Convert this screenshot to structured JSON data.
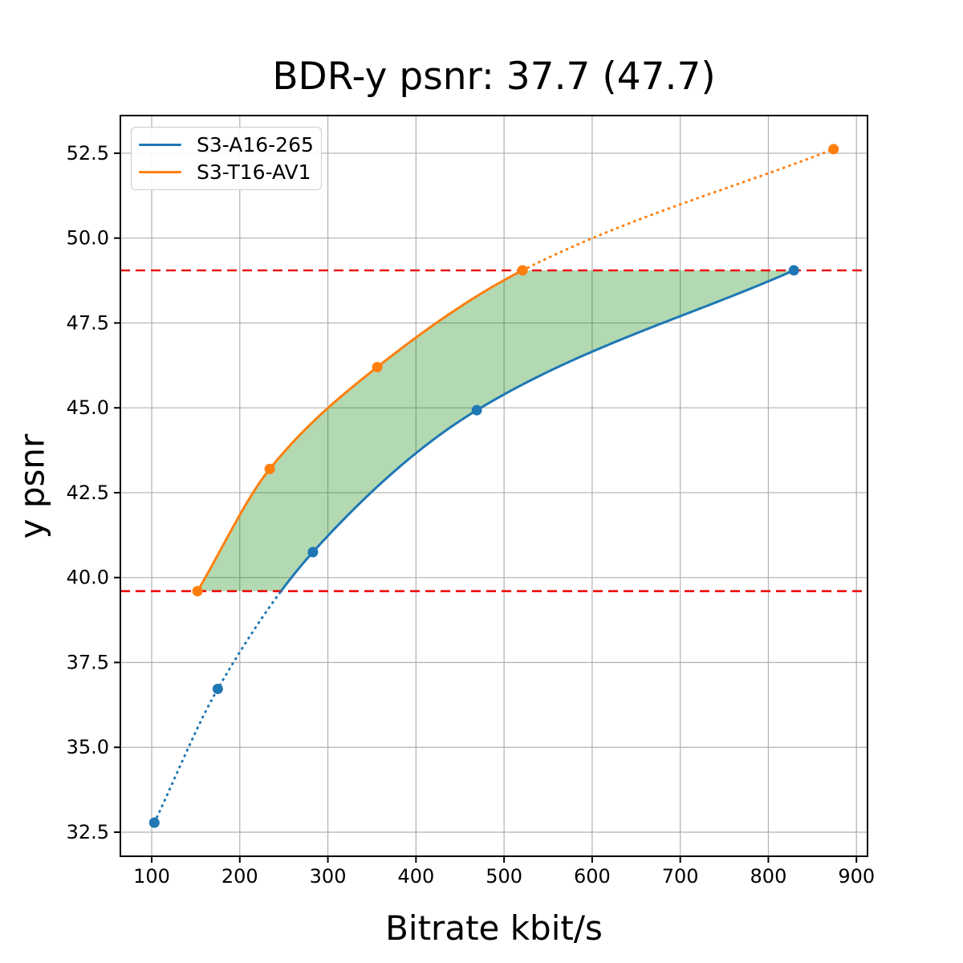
{
  "chart_data": {
    "type": "line",
    "title": "BDR-y psnr: 37.7 (47.7)",
    "xlabel": "Bitrate kbit/s",
    "ylabel": "y psnr",
    "xlim": [
      64.45,
      912.55
    ],
    "ylim": [
      31.79,
      53.61
    ],
    "xtick_values": [
      100,
      200,
      300,
      400,
      500,
      600,
      700,
      800,
      900
    ],
    "xtick_labels": [
      "100",
      "200",
      "300",
      "400",
      "500",
      "600",
      "700",
      "800",
      "900"
    ],
    "ytick_values": [
      32.5,
      35.0,
      37.5,
      40.0,
      42.5,
      45.0,
      47.5,
      50.0,
      52.5
    ],
    "ytick_labels": [
      "32.5",
      "35.0",
      "37.5",
      "40.0",
      "42.5",
      "45.0",
      "47.5",
      "50.0",
      "52.5"
    ],
    "grid": true,
    "grid_color": "#b0b0b0",
    "legend_position": "upper-left",
    "series": [
      {
        "name": "S3-A16-265",
        "color": "#1f77b4",
        "x": [
          103,
          175,
          283,
          469,
          829
        ],
        "y": [
          32.78,
          36.72,
          40.75,
          44.93,
          49.05
        ],
        "line_style": "dotted below overlap range, solid inside"
      },
      {
        "name": "S3-T16-AV1",
        "color": "#ff7f0e",
        "x": [
          152,
          234,
          356,
          521,
          874
        ],
        "y": [
          39.6,
          43.2,
          46.2,
          49.05,
          52.62
        ],
        "line_style": "solid inside overlap range, dotted above"
      }
    ],
    "overlap_y_range": [
      39.6,
      49.05
    ],
    "hlines": [
      {
        "y": 49.05,
        "color": "#ee0000",
        "style": "dashed"
      },
      {
        "y": 39.6,
        "color": "#ee0000",
        "style": "dashed"
      }
    ],
    "fill_between": {
      "color": "#008000",
      "opacity": 0.3
    }
  }
}
